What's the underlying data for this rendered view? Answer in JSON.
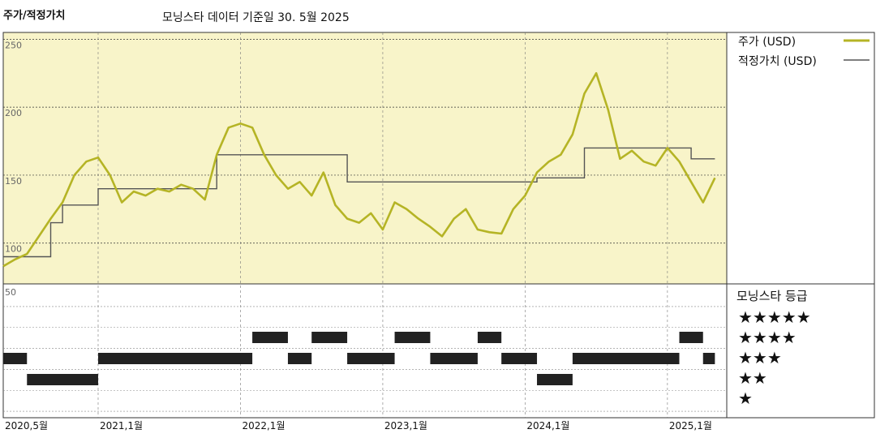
{
  "title": "주가/적정가치",
  "subtitle": "모닝스타 데이터 기준일 30. 5월 2025",
  "colors": {
    "price": "#b5b425",
    "fair_value": "#555555",
    "plot_bg": "#f8f4c9",
    "rating_bar": "#222222"
  },
  "chart_data": [
    {
      "type": "line",
      "title": "주가/적정가치",
      "ylim": [
        70,
        255
      ],
      "yticks": [
        "250",
        "200",
        "150",
        "100"
      ],
      "xticks": [
        "2020,5월",
        "2021,1월",
        "2022,1월",
        "2023,1월",
        "2024,1월",
        "2025,1월"
      ],
      "grid": true,
      "legend": "right",
      "series": [
        {
          "name": "주가 (USD)",
          "points": [
            [
              "2020-05",
              83
            ],
            [
              "2020-06",
              88
            ],
            [
              "2020-07",
              92
            ],
            [
              "2020-08",
              105
            ],
            [
              "2020-09",
              118
            ],
            [
              "2020-10",
              130
            ],
            [
              "2020-11",
              150
            ],
            [
              "2020-12",
              160
            ],
            [
              "2021-01",
              163
            ],
            [
              "2021-02",
              150
            ],
            [
              "2021-03",
              130
            ],
            [
              "2021-04",
              138
            ],
            [
              "2021-05",
              135
            ],
            [
              "2021-06",
              140
            ],
            [
              "2021-07",
              138
            ],
            [
              "2021-08",
              143
            ],
            [
              "2021-09",
              140
            ],
            [
              "2021-10",
              132
            ],
            [
              "2021-11",
              165
            ],
            [
              "2021-12",
              185
            ],
            [
              "2022-01",
              188
            ],
            [
              "2022-02",
              185
            ],
            [
              "2022-03",
              165
            ],
            [
              "2022-04",
              150
            ],
            [
              "2022-05",
              140
            ],
            [
              "2022-06",
              145
            ],
            [
              "2022-07",
              135
            ],
            [
              "2022-08",
              152
            ],
            [
              "2022-09",
              128
            ],
            [
              "2022-10",
              118
            ],
            [
              "2022-11",
              115
            ],
            [
              "2022-12",
              122
            ],
            [
              "2023-01",
              110
            ],
            [
              "2023-02",
              130
            ],
            [
              "2023-03",
              125
            ],
            [
              "2023-04",
              118
            ],
            [
              "2023-05",
              112
            ],
            [
              "2023-06",
              105
            ],
            [
              "2023-07",
              118
            ],
            [
              "2023-08",
              125
            ],
            [
              "2023-09",
              110
            ],
            [
              "2023-10",
              108
            ],
            [
              "2023-11",
              107
            ],
            [
              "2023-12",
              125
            ],
            [
              "2024-01",
              135
            ],
            [
              "2024-02",
              152
            ],
            [
              "2024-03",
              160
            ],
            [
              "2024-04",
              165
            ],
            [
              "2024-05",
              180
            ],
            [
              "2024-06",
              210
            ],
            [
              "2024-07",
              225
            ],
            [
              "2024-08",
              198
            ],
            [
              "2024-09",
              162
            ],
            [
              "2024-10",
              168
            ],
            [
              "2024-11",
              160
            ],
            [
              "2024-12",
              157
            ],
            [
              "2025-01",
              170
            ],
            [
              "2025-02",
              160
            ],
            [
              "2025-03",
              145
            ],
            [
              "2025-04",
              130
            ],
            [
              "2025-05",
              148
            ]
          ]
        },
        {
          "name": "적정가치 (USD)",
          "step": true,
          "points": [
            [
              "2020-05",
              90
            ],
            [
              "2020-09",
              90
            ],
            [
              "2020-09",
              115
            ],
            [
              "2020-10",
              115
            ],
            [
              "2020-10",
              128
            ],
            [
              "2021-01",
              128
            ],
            [
              "2021-01",
              140
            ],
            [
              "2021-11",
              140
            ],
            [
              "2021-11",
              165
            ],
            [
              "2022-10",
              165
            ],
            [
              "2022-10",
              145
            ],
            [
              "2024-02",
              145
            ],
            [
              "2024-02",
              148
            ],
            [
              "2024-06",
              148
            ],
            [
              "2024-06",
              170
            ],
            [
              "2025-03",
              170
            ],
            [
              "2025-03",
              162
            ],
            [
              "2025-05",
              162
            ]
          ]
        }
      ]
    },
    {
      "type": "heatmap",
      "title": "모닝스타 등급",
      "rows": [
        "★★★★★",
        "★★★★",
        "★★★",
        "★★",
        "★"
      ],
      "ylabel_top": "50",
      "periods": [
        {
          "stars": 3,
          "from": "2020-05",
          "to": "2020-07"
        },
        {
          "stars": 2,
          "from": "2020-07",
          "to": "2021-01"
        },
        {
          "stars": 3,
          "from": "2021-01",
          "to": "2022-02"
        },
        {
          "stars": 4,
          "from": "2022-02",
          "to": "2022-05"
        },
        {
          "stars": 3,
          "from": "2022-05",
          "to": "2022-07"
        },
        {
          "stars": 4,
          "from": "2022-07",
          "to": "2022-10"
        },
        {
          "stars": 3,
          "from": "2022-10",
          "to": "2023-02"
        },
        {
          "stars": 4,
          "from": "2023-02",
          "to": "2023-05"
        },
        {
          "stars": 3,
          "from": "2023-05",
          "to": "2023-09"
        },
        {
          "stars": 4,
          "from": "2023-09",
          "to": "2023-11"
        },
        {
          "stars": 3,
          "from": "2023-11",
          "to": "2024-02"
        },
        {
          "stars": 2,
          "from": "2024-02",
          "to": "2024-05"
        },
        {
          "stars": 3,
          "from": "2024-05",
          "to": "2025-02"
        },
        {
          "stars": 4,
          "from": "2025-02",
          "to": "2025-04"
        },
        {
          "stars": 3,
          "from": "2025-04",
          "to": "2025-05"
        }
      ]
    }
  ]
}
